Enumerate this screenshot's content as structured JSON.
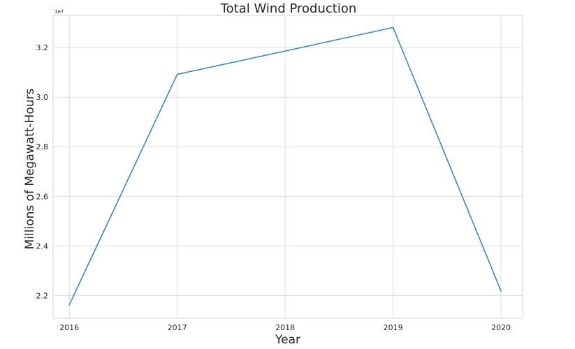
{
  "chart_data": {
    "type": "line",
    "title": "Total Wind Production",
    "xlabel": "Year",
    "ylabel": "Millions of Megawatt-Hours",
    "offset_label": "1e7",
    "x": [
      2016,
      2017,
      2018,
      2019,
      2020
    ],
    "x_tick_labels": [
      "2016",
      "2017",
      "2018",
      "2019",
      "2020"
    ],
    "series": [
      {
        "values": [
          21620000,
          30920000,
          31860000,
          32810000,
          22180000
        ]
      }
    ],
    "y_ticks": [
      22000000,
      24000000,
      26000000,
      28000000,
      30000000,
      32000000
    ],
    "y_tick_labels": [
      "2.2",
      "2.4",
      "2.6",
      "2.8",
      "3.0",
      "3.2"
    ],
    "xlim": [
      2015.85,
      2020.2
    ],
    "ylim": [
      21080000,
      33300000
    ],
    "grid": true,
    "line_color": "#3a87c4",
    "grid_color": "#dcdcdc",
    "spine_color": "#d6d6d6"
  }
}
